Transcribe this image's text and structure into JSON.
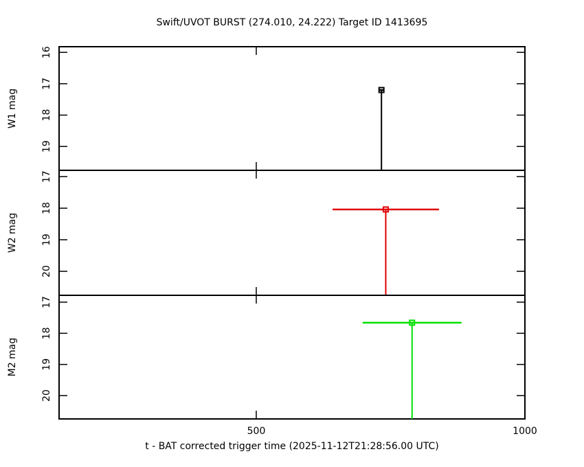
{
  "chart_data": {
    "type": "scatter",
    "title": "Swift/UVOT BURST (274.010, 24.222) Target ID 1413695",
    "xlabel": "t - BAT corrected trigger time (2025-11-12T21:28:56.00 UTC)",
    "xlim": [
      133,
      1000
    ],
    "xticks": [
      500,
      1000
    ],
    "panels": [
      {
        "ylabel": "W1 mag",
        "ylim": [
          15.82,
          19.76
        ],
        "yticks": [
          16,
          17,
          18,
          19
        ],
        "color": "#000000",
        "x": [
          733
        ],
        "xerr": [
          5
        ],
        "values": [
          17.2
        ]
      },
      {
        "ylabel": "W2 mag",
        "ylim": [
          16.8,
          20.76
        ],
        "yticks": [
          17,
          18,
          19,
          20
        ],
        "color": "#e00000",
        "x": [
          741
        ],
        "xerr": [
          99
        ],
        "values": [
          18.04
        ]
      },
      {
        "ylabel": "M2 mag",
        "ylim": [
          16.78,
          20.75
        ],
        "yticks": [
          17,
          18,
          19,
          20
        ],
        "color": "#00e000",
        "x": [
          790
        ],
        "xerr": [
          92
        ],
        "values": [
          17.66
        ]
      }
    ]
  }
}
